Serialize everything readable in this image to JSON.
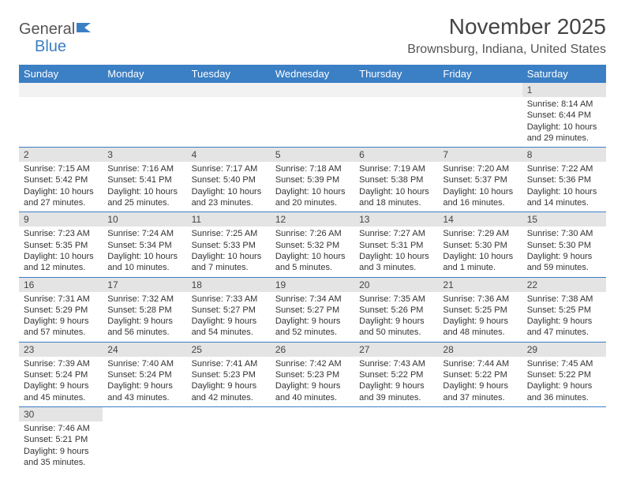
{
  "logo": {
    "part1": "General",
    "part2": "Blue"
  },
  "title": "November 2025",
  "location": "Brownsburg, Indiana, United States",
  "colors": {
    "header_bg": "#3b7fc4",
    "header_text": "#ffffff",
    "daynum_bg": "#e4e4e4",
    "border": "#3b7fc4",
    "text": "#333333"
  },
  "day_headers": [
    "Sunday",
    "Monday",
    "Tuesday",
    "Wednesday",
    "Thursday",
    "Friday",
    "Saturday"
  ],
  "weeks": [
    [
      null,
      null,
      null,
      null,
      null,
      null,
      {
        "n": "1",
        "sunrise": "Sunrise: 8:14 AM",
        "sunset": "Sunset: 6:44 PM",
        "daylight": "Daylight: 10 hours and 29 minutes."
      }
    ],
    [
      {
        "n": "2",
        "sunrise": "Sunrise: 7:15 AM",
        "sunset": "Sunset: 5:42 PM",
        "daylight": "Daylight: 10 hours and 27 minutes."
      },
      {
        "n": "3",
        "sunrise": "Sunrise: 7:16 AM",
        "sunset": "Sunset: 5:41 PM",
        "daylight": "Daylight: 10 hours and 25 minutes."
      },
      {
        "n": "4",
        "sunrise": "Sunrise: 7:17 AM",
        "sunset": "Sunset: 5:40 PM",
        "daylight": "Daylight: 10 hours and 23 minutes."
      },
      {
        "n": "5",
        "sunrise": "Sunrise: 7:18 AM",
        "sunset": "Sunset: 5:39 PM",
        "daylight": "Daylight: 10 hours and 20 minutes."
      },
      {
        "n": "6",
        "sunrise": "Sunrise: 7:19 AM",
        "sunset": "Sunset: 5:38 PM",
        "daylight": "Daylight: 10 hours and 18 minutes."
      },
      {
        "n": "7",
        "sunrise": "Sunrise: 7:20 AM",
        "sunset": "Sunset: 5:37 PM",
        "daylight": "Daylight: 10 hours and 16 minutes."
      },
      {
        "n": "8",
        "sunrise": "Sunrise: 7:22 AM",
        "sunset": "Sunset: 5:36 PM",
        "daylight": "Daylight: 10 hours and 14 minutes."
      }
    ],
    [
      {
        "n": "9",
        "sunrise": "Sunrise: 7:23 AM",
        "sunset": "Sunset: 5:35 PM",
        "daylight": "Daylight: 10 hours and 12 minutes."
      },
      {
        "n": "10",
        "sunrise": "Sunrise: 7:24 AM",
        "sunset": "Sunset: 5:34 PM",
        "daylight": "Daylight: 10 hours and 10 minutes."
      },
      {
        "n": "11",
        "sunrise": "Sunrise: 7:25 AM",
        "sunset": "Sunset: 5:33 PM",
        "daylight": "Daylight: 10 hours and 7 minutes."
      },
      {
        "n": "12",
        "sunrise": "Sunrise: 7:26 AM",
        "sunset": "Sunset: 5:32 PM",
        "daylight": "Daylight: 10 hours and 5 minutes."
      },
      {
        "n": "13",
        "sunrise": "Sunrise: 7:27 AM",
        "sunset": "Sunset: 5:31 PM",
        "daylight": "Daylight: 10 hours and 3 minutes."
      },
      {
        "n": "14",
        "sunrise": "Sunrise: 7:29 AM",
        "sunset": "Sunset: 5:30 PM",
        "daylight": "Daylight: 10 hours and 1 minute."
      },
      {
        "n": "15",
        "sunrise": "Sunrise: 7:30 AM",
        "sunset": "Sunset: 5:30 PM",
        "daylight": "Daylight: 9 hours and 59 minutes."
      }
    ],
    [
      {
        "n": "16",
        "sunrise": "Sunrise: 7:31 AM",
        "sunset": "Sunset: 5:29 PM",
        "daylight": "Daylight: 9 hours and 57 minutes."
      },
      {
        "n": "17",
        "sunrise": "Sunrise: 7:32 AM",
        "sunset": "Sunset: 5:28 PM",
        "daylight": "Daylight: 9 hours and 56 minutes."
      },
      {
        "n": "18",
        "sunrise": "Sunrise: 7:33 AM",
        "sunset": "Sunset: 5:27 PM",
        "daylight": "Daylight: 9 hours and 54 minutes."
      },
      {
        "n": "19",
        "sunrise": "Sunrise: 7:34 AM",
        "sunset": "Sunset: 5:27 PM",
        "daylight": "Daylight: 9 hours and 52 minutes."
      },
      {
        "n": "20",
        "sunrise": "Sunrise: 7:35 AM",
        "sunset": "Sunset: 5:26 PM",
        "daylight": "Daylight: 9 hours and 50 minutes."
      },
      {
        "n": "21",
        "sunrise": "Sunrise: 7:36 AM",
        "sunset": "Sunset: 5:25 PM",
        "daylight": "Daylight: 9 hours and 48 minutes."
      },
      {
        "n": "22",
        "sunrise": "Sunrise: 7:38 AM",
        "sunset": "Sunset: 5:25 PM",
        "daylight": "Daylight: 9 hours and 47 minutes."
      }
    ],
    [
      {
        "n": "23",
        "sunrise": "Sunrise: 7:39 AM",
        "sunset": "Sunset: 5:24 PM",
        "daylight": "Daylight: 9 hours and 45 minutes."
      },
      {
        "n": "24",
        "sunrise": "Sunrise: 7:40 AM",
        "sunset": "Sunset: 5:24 PM",
        "daylight": "Daylight: 9 hours and 43 minutes."
      },
      {
        "n": "25",
        "sunrise": "Sunrise: 7:41 AM",
        "sunset": "Sunset: 5:23 PM",
        "daylight": "Daylight: 9 hours and 42 minutes."
      },
      {
        "n": "26",
        "sunrise": "Sunrise: 7:42 AM",
        "sunset": "Sunset: 5:23 PM",
        "daylight": "Daylight: 9 hours and 40 minutes."
      },
      {
        "n": "27",
        "sunrise": "Sunrise: 7:43 AM",
        "sunset": "Sunset: 5:22 PM",
        "daylight": "Daylight: 9 hours and 39 minutes."
      },
      {
        "n": "28",
        "sunrise": "Sunrise: 7:44 AM",
        "sunset": "Sunset: 5:22 PM",
        "daylight": "Daylight: 9 hours and 37 minutes."
      },
      {
        "n": "29",
        "sunrise": "Sunrise: 7:45 AM",
        "sunset": "Sunset: 5:22 PM",
        "daylight": "Daylight: 9 hours and 36 minutes."
      }
    ],
    [
      {
        "n": "30",
        "sunrise": "Sunrise: 7:46 AM",
        "sunset": "Sunset: 5:21 PM",
        "daylight": "Daylight: 9 hours and 35 minutes."
      },
      null,
      null,
      null,
      null,
      null,
      null
    ]
  ]
}
